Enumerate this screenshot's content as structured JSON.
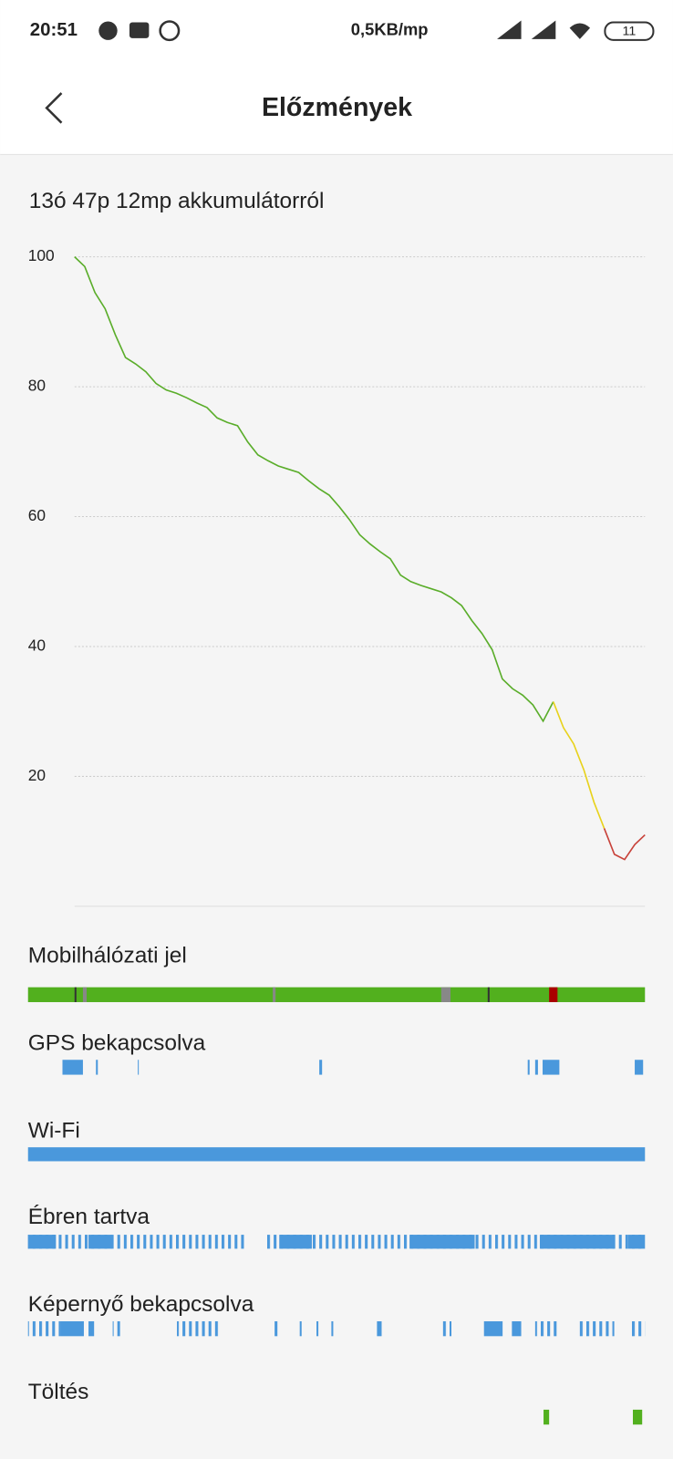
{
  "status_bar": {
    "time": "20:51",
    "network_speed": "0,5KB/mp",
    "battery": "11"
  },
  "header": {
    "title": "Előzmények"
  },
  "chart_data": {
    "type": "line",
    "title": "13ó 47p 12mp akkumulátorról",
    "series": [
      {
        "color": "#5aad2a",
        "values": [
          100,
          98.5,
          94.5,
          92,
          88,
          84.5,
          83.5,
          82.3,
          80.5,
          79.5,
          79,
          78.3,
          77.5,
          76.8,
          75.2,
          74.5,
          74,
          71.5,
          69.5,
          68.6,
          67.8,
          67.3,
          66.8,
          65.5,
          64.3,
          63.3,
          61.5,
          59.5,
          57.2,
          55.8,
          54.6,
          53.5,
          51,
          50,
          49.4,
          48.9,
          48.4,
          47.5,
          46.3,
          44,
          42,
          39.5,
          35,
          33.5,
          32.5,
          31,
          28.5,
          31.5,
          null,
          null,
          null,
          null,
          null,
          null,
          null,
          null,
          null
        ]
      },
      {
        "color": "#e8d21c",
        "values": [
          null,
          null,
          null,
          null,
          null,
          null,
          null,
          null,
          null,
          null,
          null,
          null,
          null,
          null,
          null,
          null,
          null,
          null,
          null,
          null,
          null,
          null,
          null,
          null,
          null,
          null,
          null,
          null,
          null,
          null,
          null,
          null,
          null,
          null,
          null,
          null,
          null,
          null,
          null,
          null,
          null,
          null,
          null,
          null,
          null,
          null,
          null,
          31.5,
          27.5,
          25,
          21,
          16,
          12,
          null,
          null,
          null,
          null
        ]
      },
      {
        "color": "#c8423a",
        "values": [
          null,
          null,
          null,
          null,
          null,
          null,
          null,
          null,
          null,
          null,
          null,
          null,
          null,
          null,
          null,
          null,
          null,
          null,
          null,
          null,
          null,
          null,
          null,
          null,
          null,
          null,
          null,
          null,
          null,
          null,
          null,
          null,
          null,
          null,
          null,
          null,
          null,
          null,
          null,
          null,
          null,
          null,
          null,
          null,
          null,
          null,
          null,
          null,
          null,
          null,
          null,
          null,
          12,
          8,
          7.2,
          9.5,
          11
        ]
      }
    ],
    "ylim": [
      0,
      100
    ],
    "yticks": [
      20,
      40,
      60,
      80,
      100
    ],
    "grid": true
  },
  "timelines": [
    {
      "label": "Mobilhálózati jel"
    },
    {
      "label": "GPS bekapcsolva"
    },
    {
      "label": "Wi-Fi"
    },
    {
      "label": "Ébren tartva"
    },
    {
      "label": "Képernyő bekapcsolva"
    },
    {
      "label": "Töltés"
    }
  ]
}
